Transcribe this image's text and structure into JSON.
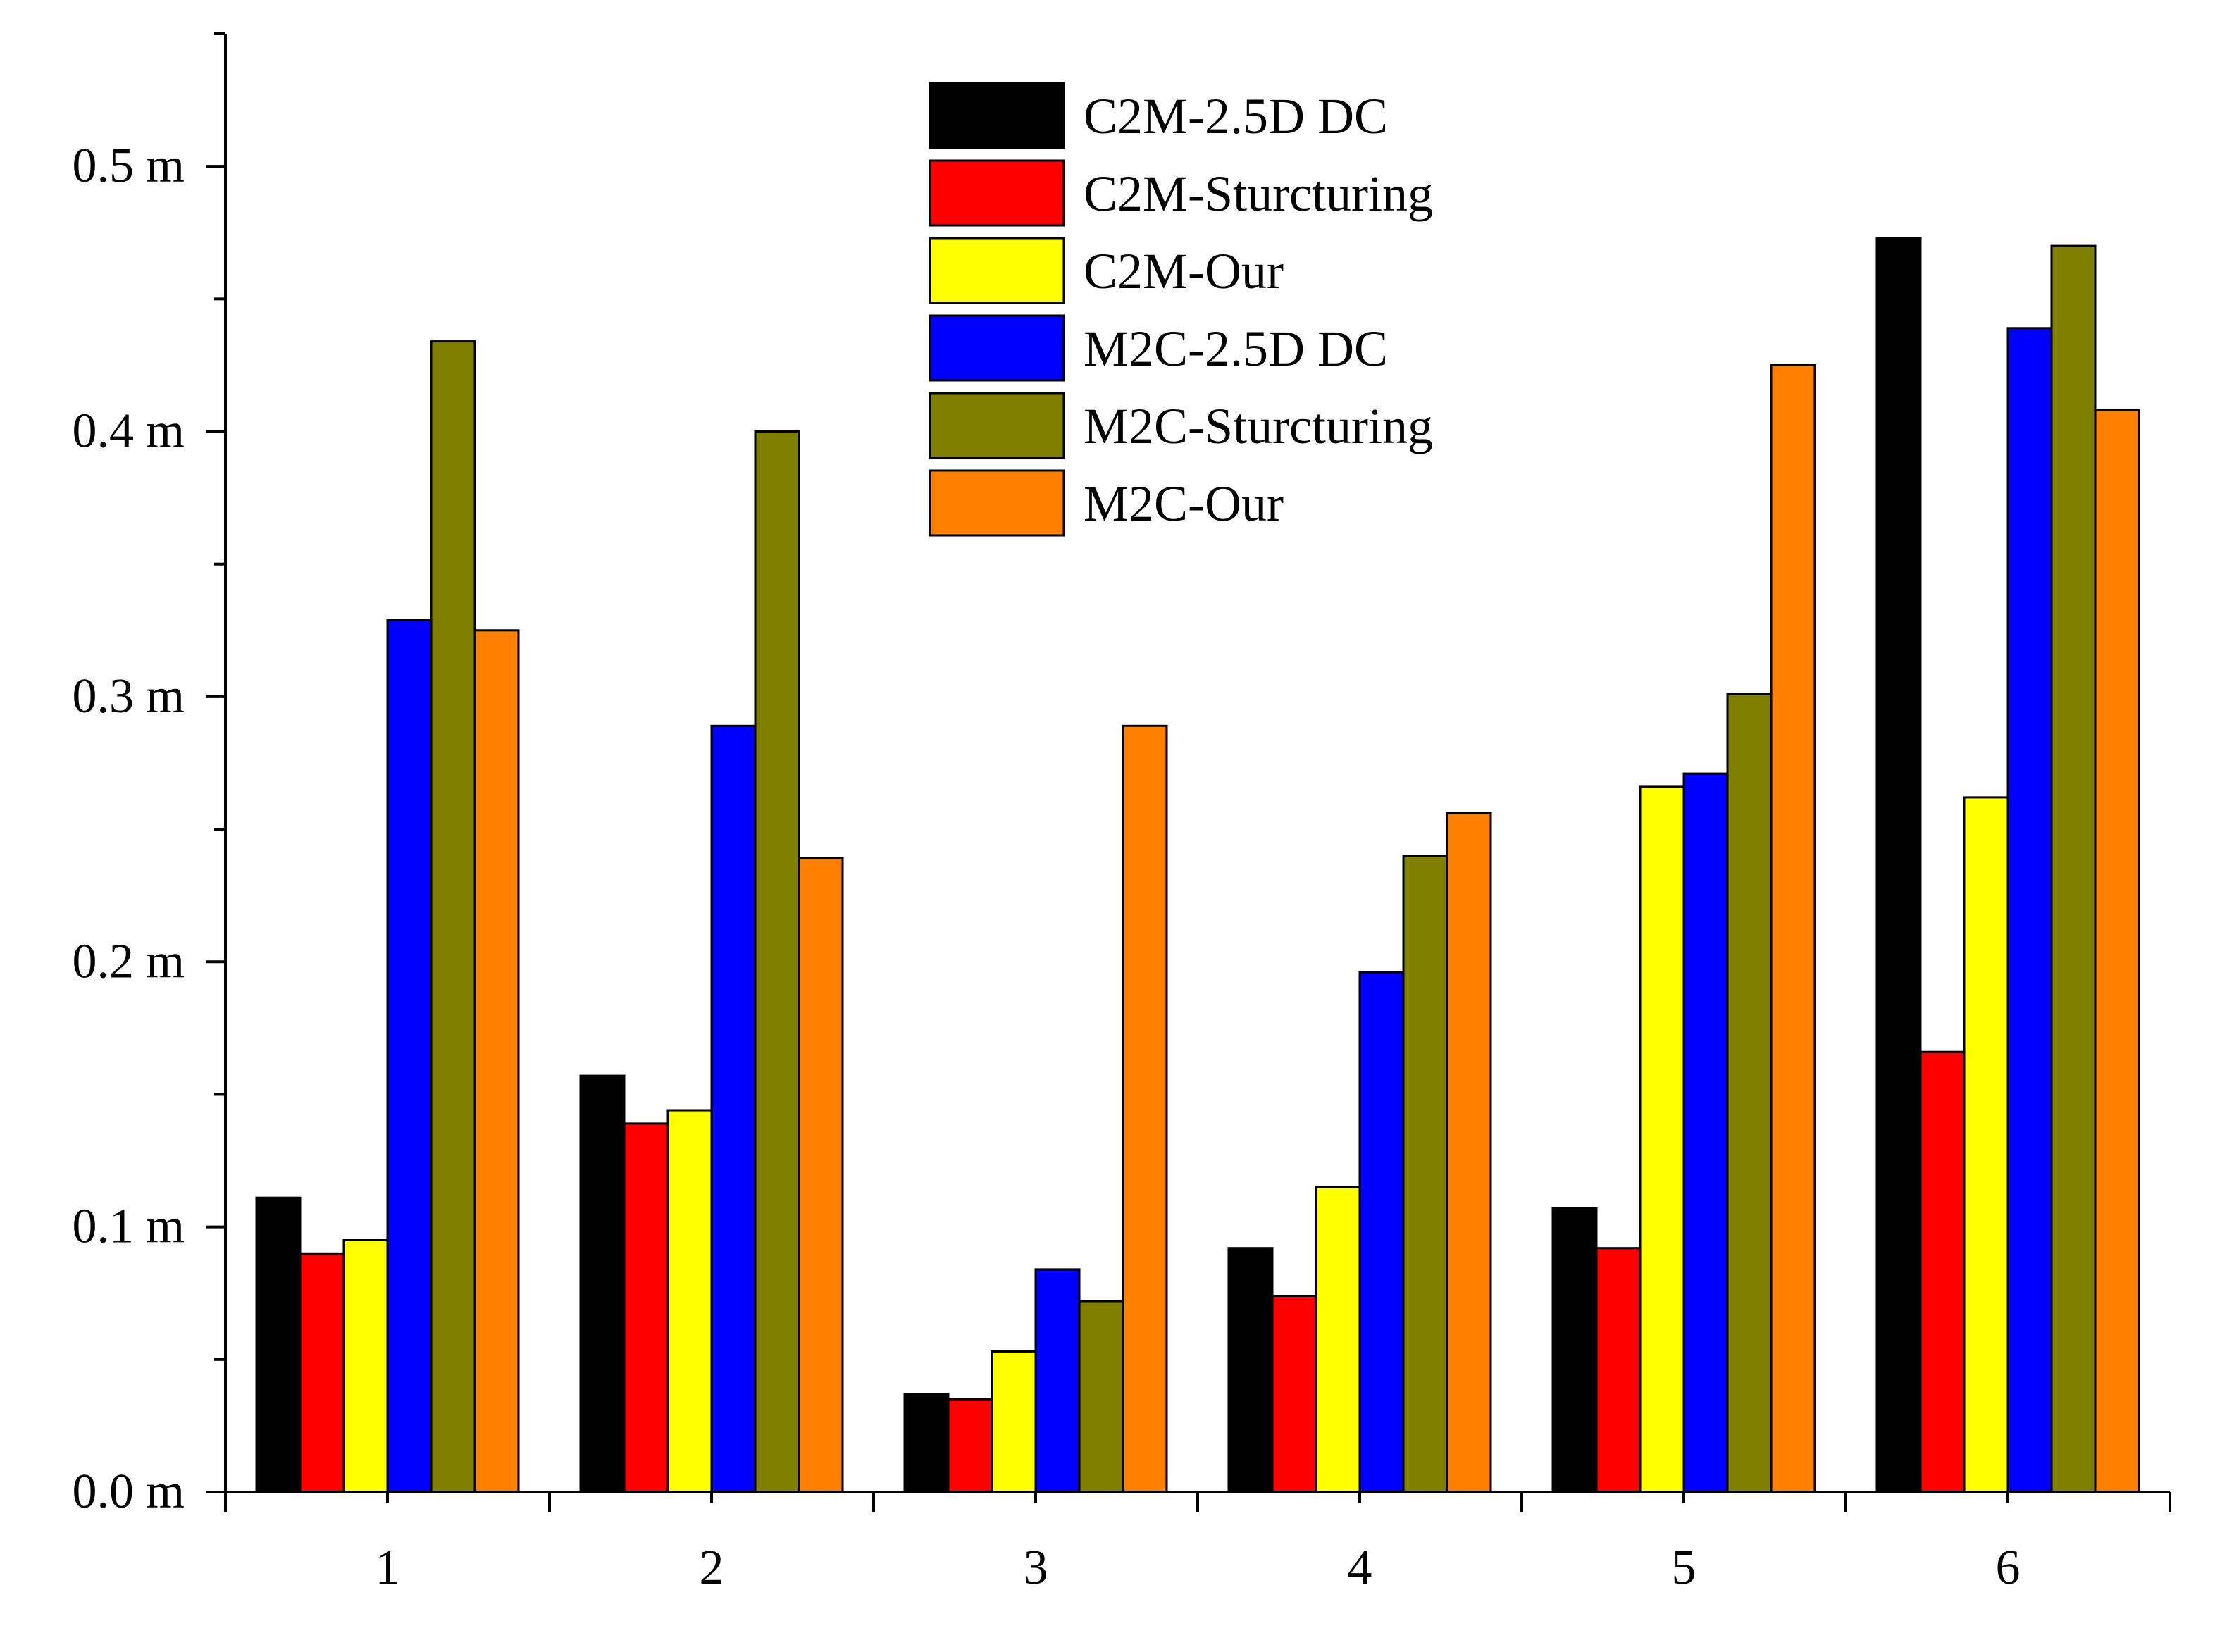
{
  "chart_data": {
    "type": "bar",
    "title": "",
    "xlabel": "",
    "ylabel": "",
    "ylim": [
      0,
      0.55
    ],
    "yticks": [
      0.0,
      0.1,
      0.2,
      0.3,
      0.4,
      0.5
    ],
    "ytick_labels": [
      "0.0 m",
      "0.1 m",
      "0.2 m",
      "0.3 m",
      "0.4 m",
      "0.5 m"
    ],
    "categories": [
      "1",
      "2",
      "3",
      "4",
      "5",
      "6"
    ],
    "legend_position": "top-center",
    "grid": false,
    "series": [
      {
        "name": "C2M-2.5D DC",
        "color": "#000000",
        "values": [
          0.111,
          0.157,
          0.037,
          0.092,
          0.107,
          0.473
        ]
      },
      {
        "name": "C2M-Sturcturing",
        "color": "#ff0000",
        "values": [
          0.09,
          0.139,
          0.035,
          0.074,
          0.092,
          0.166
        ]
      },
      {
        "name": "C2M-Our",
        "color": "#ffff00",
        "values": [
          0.095,
          0.144,
          0.053,
          0.115,
          0.266,
          0.262
        ]
      },
      {
        "name": "M2C-2.5D DC",
        "color": "#0000ff",
        "values": [
          0.329,
          0.289,
          0.084,
          0.196,
          0.271,
          0.439
        ]
      },
      {
        "name": "M2C-Sturcturing",
        "color": "#808000",
        "values": [
          0.434,
          0.4,
          0.072,
          0.24,
          0.301,
          0.47
        ]
      },
      {
        "name": "M2C-Our",
        "color": "#ff8000",
        "values": [
          0.325,
          0.239,
          0.289,
          0.256,
          0.425,
          0.408
        ]
      }
    ]
  }
}
